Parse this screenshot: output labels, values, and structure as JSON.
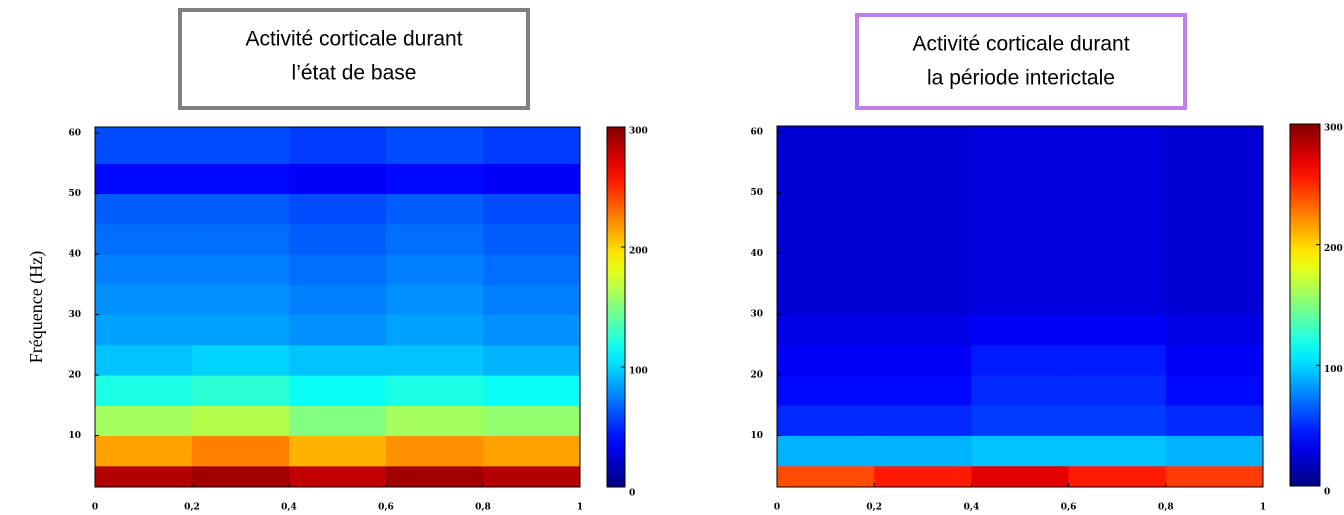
{
  "chart_data": [
    {
      "type": "heatmap",
      "title": [
        "Activité corticale durant",
        "l’état de base"
      ],
      "title_border": "#808080",
      "ylabel": "Fréquence (Hz)",
      "colormap": "jet",
      "clim": [
        0,
        300
      ],
      "cticks": [
        0,
        100,
        200,
        300
      ],
      "xlim": [
        0,
        1
      ],
      "ylim": [
        1.5,
        61
      ],
      "xticks": [
        0,
        {
          "value": 0.2,
          "label": "0,2"
        },
        {
          "value": 0.4,
          "label": "0,4"
        },
        {
          "value": 0.6,
          "label": "0,6"
        },
        {
          "value": 0.8,
          "label": "0,8"
        },
        1
      ],
      "yticks": [
        10,
        20,
        30,
        40,
        50,
        60
      ],
      "x_bins": [
        0,
        0.2,
        0.4,
        0.6,
        0.8,
        1
      ],
      "y_bins": [
        1.5,
        5,
        10,
        15,
        20,
        25,
        30,
        35,
        40,
        45,
        50,
        55,
        61
      ],
      "values": [
        [
          285,
          290,
          280,
          290,
          285
        ],
        [
          215,
          225,
          210,
          220,
          215
        ],
        [
          160,
          165,
          150,
          160,
          155
        ],
        [
          120,
          125,
          115,
          120,
          115
        ],
        [
          95,
          100,
          95,
          95,
          90
        ],
        [
          85,
          85,
          80,
          85,
          80
        ],
        [
          80,
          80,
          75,
          80,
          75
        ],
        [
          75,
          75,
          70,
          75,
          70
        ],
        [
          70,
          70,
          65,
          70,
          65
        ],
        [
          65,
          65,
          60,
          65,
          60
        ],
        [
          40,
          40,
          35,
          40,
          35
        ],
        [
          60,
          60,
          55,
          60,
          55
        ]
      ]
    },
    {
      "type": "heatmap",
      "title": [
        "Activité corticale durant",
        "la période interictale"
      ],
      "title_border": "#c080e8",
      "colormap": "jet",
      "clim": [
        0,
        300
      ],
      "cticks": [
        0,
        100,
        200,
        300
      ],
      "xlim": [
        0,
        1
      ],
      "ylim": [
        1.5,
        61
      ],
      "xticks": [
        0,
        {
          "value": 0.2,
          "label": "0,2"
        },
        {
          "value": 0.4,
          "label": "0,4"
        },
        {
          "value": 0.6,
          "label": "0,6"
        },
        {
          "value": 0.8,
          "label": "0,8"
        },
        1
      ],
      "yticks": [
        10,
        20,
        30,
        40,
        50,
        60
      ],
      "x_bins": [
        0,
        0.2,
        0.4,
        0.6,
        0.8,
        1
      ],
      "y_bins": [
        1.5,
        5,
        10,
        15,
        20,
        25,
        30,
        35,
        40,
        45,
        50,
        55,
        61
      ],
      "values": [
        [
          240,
          255,
          270,
          255,
          245
        ],
        [
          90,
          90,
          95,
          95,
          90
        ],
        [
          50,
          50,
          55,
          55,
          50
        ],
        [
          40,
          40,
          50,
          50,
          40
        ],
        [
          35,
          35,
          45,
          45,
          35
        ],
        [
          30,
          30,
          35,
          35,
          30
        ],
        [
          25,
          25,
          28,
          28,
          25
        ],
        [
          25,
          25,
          28,
          28,
          25
        ],
        [
          25,
          25,
          28,
          28,
          25
        ],
        [
          25,
          25,
          28,
          28,
          25
        ],
        [
          25,
          25,
          28,
          28,
          25
        ],
        [
          25,
          25,
          28,
          28,
          25
        ]
      ]
    }
  ]
}
